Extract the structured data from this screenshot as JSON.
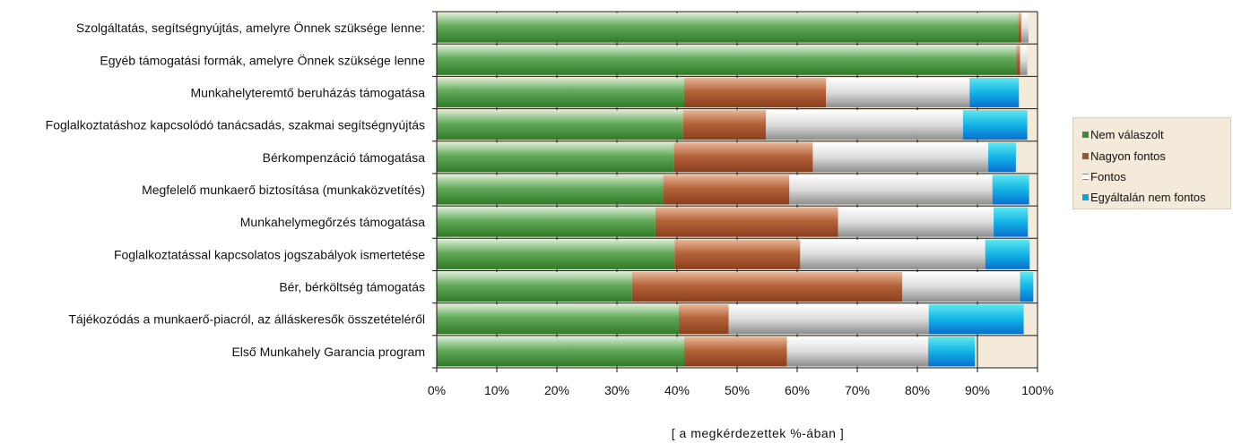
{
  "chart_data": {
    "type": "bar",
    "orientation": "horizontal",
    "stacked": "percent",
    "categories": [
      "Szolgáltatás, segítségnyújtás, amelyre Önnek szüksége lenne:",
      "Egyéb támogatási formák, amelyre Önnek szüksége lenne",
      "Munkahelyteremtő beruházás támogatása",
      "Foglalkoztatáshoz kapcsolódó tanácsadás, szakmai segítségnyújtás",
      "Bérkompenzáció támogatása",
      "Megfelelő munkaerő biztosítása (munkaközvetítés)",
      "Munkahelymegőrzés támogatása",
      "Foglalkoztatással kapcsolatos jogszabályok ismertetése",
      "Bér, bérköltség támogatás",
      "Tájékozódás a munkaerő-piacról, az álláskeresők összetételéről",
      "Első Munkahely Garancia program"
    ],
    "series": [
      {
        "name": "Nem válaszolt",
        "values": [
          96.8,
          96.5,
          41.2,
          41.0,
          39.5,
          37.7,
          36.4,
          39.6,
          32.5,
          40.3,
          41.2
        ]
      },
      {
        "name": "Nagyon fontos",
        "values": [
          0.5,
          0.6,
          23.6,
          13.8,
          23.1,
          21.0,
          30.4,
          20.9,
          45.0,
          8.3,
          17.1
        ]
      },
      {
        "name": "Fontos",
        "values": [
          1.2,
          1.2,
          23.9,
          32.8,
          29.2,
          33.8,
          25.9,
          30.8,
          19.6,
          33.3,
          23.5
        ]
      },
      {
        "name": "Egyáltalán nem fontos",
        "values": [
          0,
          0,
          8.2,
          10.7,
          4.6,
          6.1,
          5.7,
          7.4,
          2.2,
          15.8,
          7.8
        ]
      }
    ],
    "x_ticks": [
      "0%",
      "10%",
      "20%",
      "30%",
      "40%",
      "50%",
      "60%",
      "70%",
      "80%",
      "90%",
      "100%"
    ],
    "xlim": [
      0,
      100
    ],
    "xlabel": "[ a megkérdezettek %-ában ]",
    "ylabel": "",
    "title": "",
    "legend_position": "right",
    "grid": "vertical major lines",
    "colors": {
      "Nem válaszolt": "#3f8a35",
      "Nagyon fontos": "#a0522d",
      "Fontos": "#d8d8d8",
      "Egyáltalán nem fontos": "#0aa3e2",
      "plot_background": "#f3ead9"
    }
  }
}
